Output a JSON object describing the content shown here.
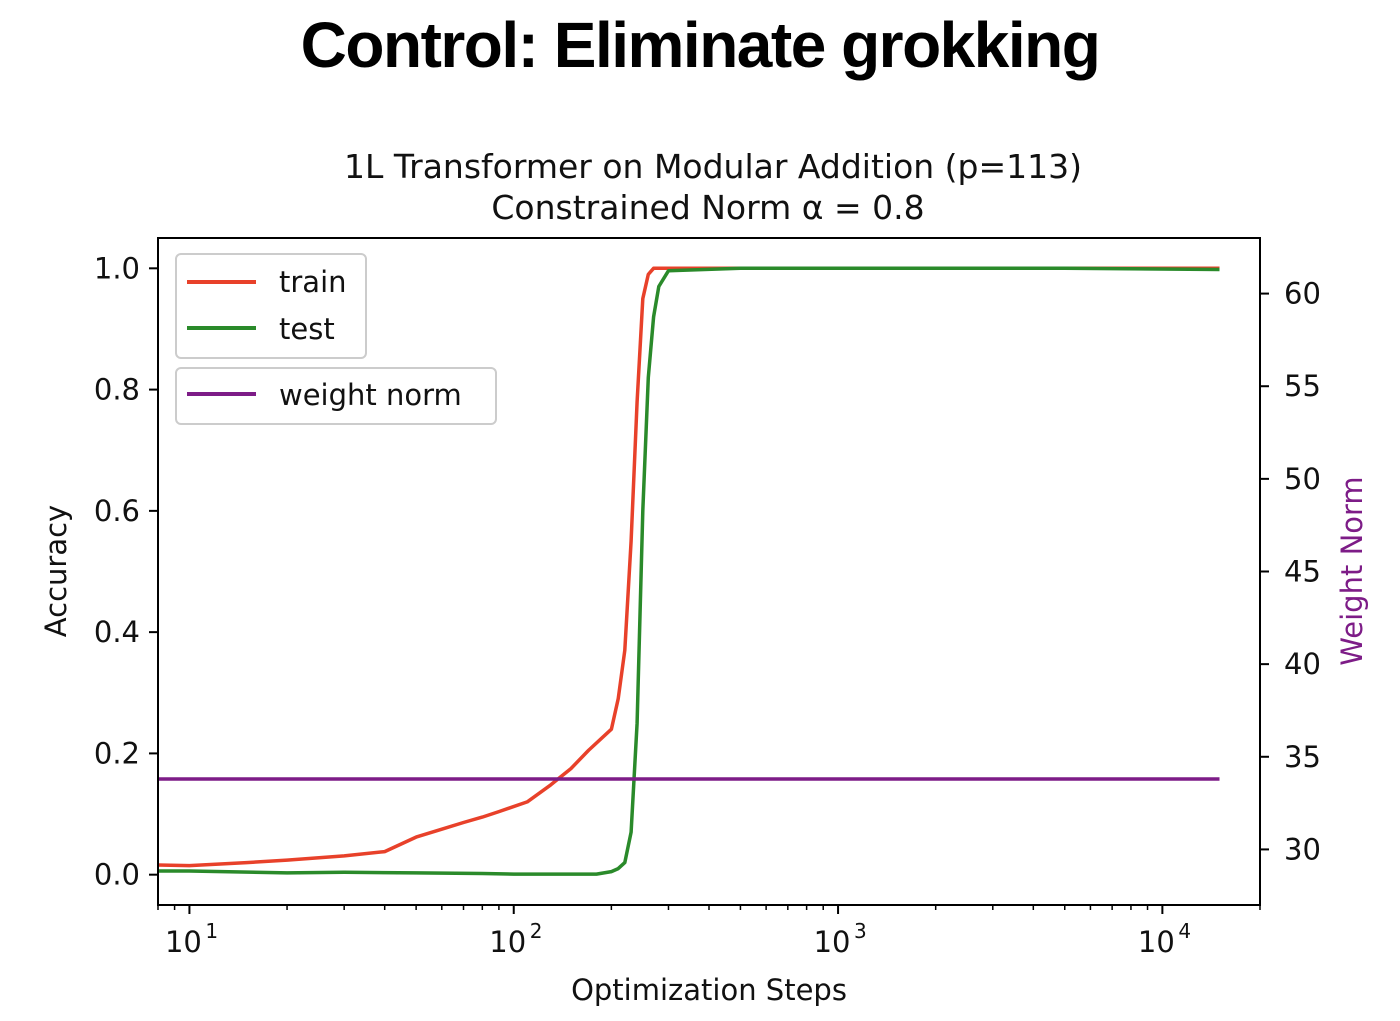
{
  "slide": {
    "title": "Control: Eliminate grokking"
  },
  "colors": {
    "train": "#e8412a",
    "test": "#2a8a2a",
    "weight_norm": "#7d1c87",
    "axis": "#000000"
  },
  "chart_data": {
    "type": "line",
    "title": "1L Transformer on Modular Addition (p=113)",
    "subtitle": "Constrained Norm α = 0.8",
    "xlabel": "Optimization Steps",
    "ylabel": "Accuracy",
    "ylabel_right": "Weight Norm",
    "x_scale": "log",
    "xlim": [
      8,
      20000
    ],
    "ylim": [
      -0.05,
      1.05
    ],
    "ylim_right": [
      27,
      63
    ],
    "x_ticks": [
      {
        "value": 10,
        "base": "10",
        "exp": "1"
      },
      {
        "value": 100,
        "base": "10",
        "exp": "2"
      },
      {
        "value": 1000,
        "base": "10",
        "exp": "3"
      },
      {
        "value": 10000,
        "base": "10",
        "exp": "4"
      }
    ],
    "y_ticks": [
      "0.0",
      "0.2",
      "0.4",
      "0.6",
      "0.8",
      "1.0"
    ],
    "y_ticks_right": [
      "30",
      "35",
      "40",
      "45",
      "50",
      "55",
      "60"
    ],
    "legend": {
      "placement": "top-left",
      "group1": [
        "train",
        "test"
      ],
      "group2": [
        "weight norm"
      ]
    },
    "series": [
      {
        "name": "train",
        "axis": "left",
        "x": [
          8,
          10,
          15,
          20,
          30,
          40,
          50,
          60,
          70,
          80,
          90,
          110,
          130,
          150,
          170,
          200,
          210,
          220,
          230,
          240,
          250,
          260,
          270,
          280,
          300,
          500,
          1000,
          5000,
          15000
        ],
        "y": [
          0.016,
          0.015,
          0.02,
          0.024,
          0.031,
          0.038,
          0.062,
          0.075,
          0.086,
          0.095,
          0.104,
          0.12,
          0.148,
          0.175,
          0.205,
          0.24,
          0.29,
          0.37,
          0.55,
          0.78,
          0.95,
          0.99,
          1.0,
          1.0,
          1.0,
          1.0,
          1.0,
          1.0,
          1.0
        ]
      },
      {
        "name": "test",
        "axis": "left",
        "x": [
          8,
          10,
          20,
          30,
          50,
          80,
          100,
          150,
          180,
          200,
          210,
          220,
          230,
          240,
          250,
          260,
          270,
          280,
          300,
          500,
          1000,
          5000,
          15000
        ],
        "y": [
          0.006,
          0.006,
          0.003,
          0.004,
          0.003,
          0.002,
          0.001,
          0.001,
          0.001,
          0.005,
          0.01,
          0.02,
          0.07,
          0.25,
          0.6,
          0.82,
          0.92,
          0.97,
          0.996,
          1.0,
          1.0,
          1.0,
          0.998
        ]
      },
      {
        "name": "weight norm",
        "axis": "right",
        "x": [
          8,
          15000
        ],
        "y": [
          33.8,
          33.8
        ]
      }
    ]
  }
}
